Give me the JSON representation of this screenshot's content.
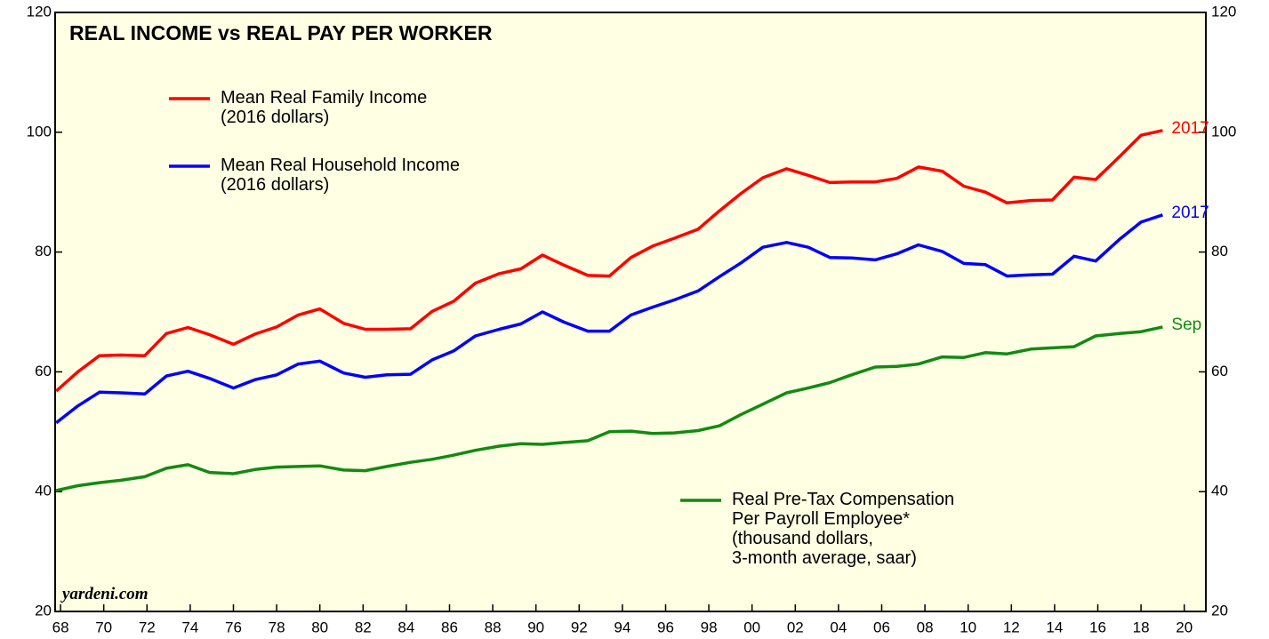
{
  "chart_data": {
    "type": "line",
    "title": "REAL INCOME vs REAL PAY PER WORKER",
    "source": "yardeni.com",
    "x": [
      1967.8,
      1968.8,
      1969.8,
      1970.8,
      1971.9,
      1972.9,
      1973.9,
      1974.9,
      1976.0,
      1977.0,
      1978.0,
      1979.0,
      1980.0,
      1981.1,
      1982.1,
      1983.1,
      1984.2,
      1985.2,
      1986.2,
      1987.2,
      1988.3,
      1989.3,
      1990.3,
      1991.3,
      1992.4,
      1993.4,
      1994.4,
      1995.4,
      1996.4,
      1997.5,
      1998.5,
      1999.5,
      2000.5,
      2001.6,
      2002.6,
      2003.6,
      2004.6,
      2005.7,
      2006.7,
      2007.7,
      2008.8,
      2009.8,
      2010.8,
      2011.8,
      2012.9,
      2013.9,
      2014.9,
      2015.9,
      2017.0,
      2018.0,
      2019.0
    ],
    "series": [
      {
        "name": "Mean Real Family Income\n(2016 dollars)",
        "color": "#ff0000",
        "end_label": "2017",
        "values": [
          56.8,
          60,
          62.7,
          62.8,
          62.7,
          66.4,
          67.4,
          66.2,
          64.6,
          66.3,
          67.5,
          69.5,
          70.5,
          68.1,
          67.1,
          67.1,
          67.2,
          70.1,
          71.8,
          74.8,
          76.4,
          77.2,
          79.5,
          77.8,
          76.1,
          76.0,
          79.1,
          81.0,
          82.3,
          83.8,
          86.9,
          89.8,
          92.4,
          93.9,
          92.8,
          91.6,
          91.7,
          91.7,
          92.3,
          94.2,
          93.5,
          91.0,
          90.0,
          88.2,
          88.6,
          88.7,
          92.5,
          92.1,
          95.9,
          99.5,
          100.3
        ]
      },
      {
        "name": "Mean Real Household Income\n(2016 dollars)",
        "color": "#0000ff",
        "end_label": "2017",
        "values": [
          51.5,
          54.3,
          56.6,
          56.5,
          56.3,
          59.3,
          60.1,
          58.9,
          57.3,
          58.7,
          59.5,
          61.3,
          61.8,
          59.8,
          59.1,
          59.5,
          59.6,
          62.0,
          63.5,
          66.0,
          67.1,
          68.0,
          70.0,
          68.3,
          66.8,
          66.8,
          69.5,
          70.8,
          72.0,
          73.5,
          75.9,
          78.2,
          80.8,
          81.6,
          80.8,
          79.1,
          79.0,
          78.7,
          79.7,
          81.2,
          80.1,
          78.1,
          77.9,
          76.0,
          76.2,
          76.3,
          79.3,
          78.5,
          82.1,
          85.0,
          86.2
        ]
      },
      {
        "name": "Real Pre-Tax Compensation\nPer Payroll Employee*\n(thousand dollars,\n3-month average, saar)",
        "color": "#138a13",
        "end_label": "Sep",
        "values": [
          40.2,
          41.0,
          41.5,
          41.9,
          42.5,
          43.9,
          44.5,
          43.2,
          43.0,
          43.7,
          44.1,
          44.2,
          44.3,
          43.6,
          43.5,
          44.2,
          44.9,
          45.4,
          46.1,
          46.9,
          47.6,
          48.0,
          47.9,
          48.2,
          48.5,
          50.0,
          50.1,
          49.7,
          49.8,
          50.2,
          51.0,
          52.9,
          54.6,
          56.5,
          57.3,
          58.2,
          59.5,
          60.8,
          60.9,
          61.3,
          62.5,
          62.4,
          63.2,
          63.0,
          63.8,
          64.0,
          64.2,
          66.0,
          66.4,
          66.7,
          67.5
        ]
      }
    ],
    "xlim": [
      1967.75,
      2021
    ],
    "xticks": [
      {
        "value": 1968,
        "label": "68"
      },
      {
        "value": 1970,
        "label": "70"
      },
      {
        "value": 1972,
        "label": "72"
      },
      {
        "value": 1974,
        "label": "74"
      },
      {
        "value": 1976,
        "label": "76"
      },
      {
        "value": 1978,
        "label": "78"
      },
      {
        "value": 1980,
        "label": "80"
      },
      {
        "value": 1982,
        "label": "82"
      },
      {
        "value": 1984,
        "label": "84"
      },
      {
        "value": 1986,
        "label": "86"
      },
      {
        "value": 1988,
        "label": "88"
      },
      {
        "value": 1990,
        "label": "90"
      },
      {
        "value": 1992,
        "label": "92"
      },
      {
        "value": 1994,
        "label": "94"
      },
      {
        "value": 1996,
        "label": "96"
      },
      {
        "value": 1998,
        "label": "98"
      },
      {
        "value": 2000,
        "label": "00"
      },
      {
        "value": 2002,
        "label": "02"
      },
      {
        "value": 2004,
        "label": "04"
      },
      {
        "value": 2006,
        "label": "06"
      },
      {
        "value": 2008,
        "label": "08"
      },
      {
        "value": 2010,
        "label": "10"
      },
      {
        "value": 2012,
        "label": "12"
      },
      {
        "value": 2014,
        "label": "14"
      },
      {
        "value": 2016,
        "label": "16"
      },
      {
        "value": 2018,
        "label": "18"
      },
      {
        "value": 2020,
        "label": "20"
      }
    ],
    "ylim": [
      20,
      120
    ],
    "yticks": [
      20,
      40,
      60,
      80,
      100,
      120
    ],
    "y2lim": [
      20,
      120
    ],
    "y2ticks": [
      20,
      40,
      60,
      80,
      100,
      120
    ]
  }
}
